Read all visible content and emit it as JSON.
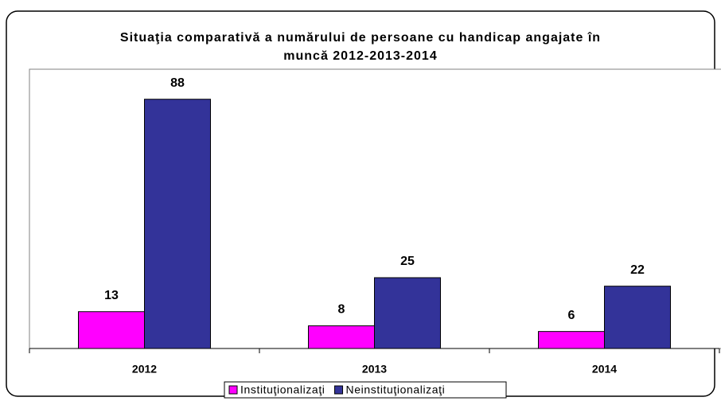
{
  "chart_data": {
    "type": "bar",
    "title": "Situaţia comparativă a numărului de persoane cu handicap angajate în muncă 2012-2013-2014",
    "categories": [
      "2012",
      "2013",
      "2014"
    ],
    "series": [
      {
        "name": "Instituţionalizaţi",
        "color": "#ff00ff",
        "values": [
          13,
          8,
          6
        ]
      },
      {
        "name": "Neinstituţionalizaţi",
        "color": "#333399",
        "values": [
          88,
          25,
          22
        ]
      }
    ],
    "ylim": [
      0,
      100
    ],
    "legend": "bottom"
  }
}
